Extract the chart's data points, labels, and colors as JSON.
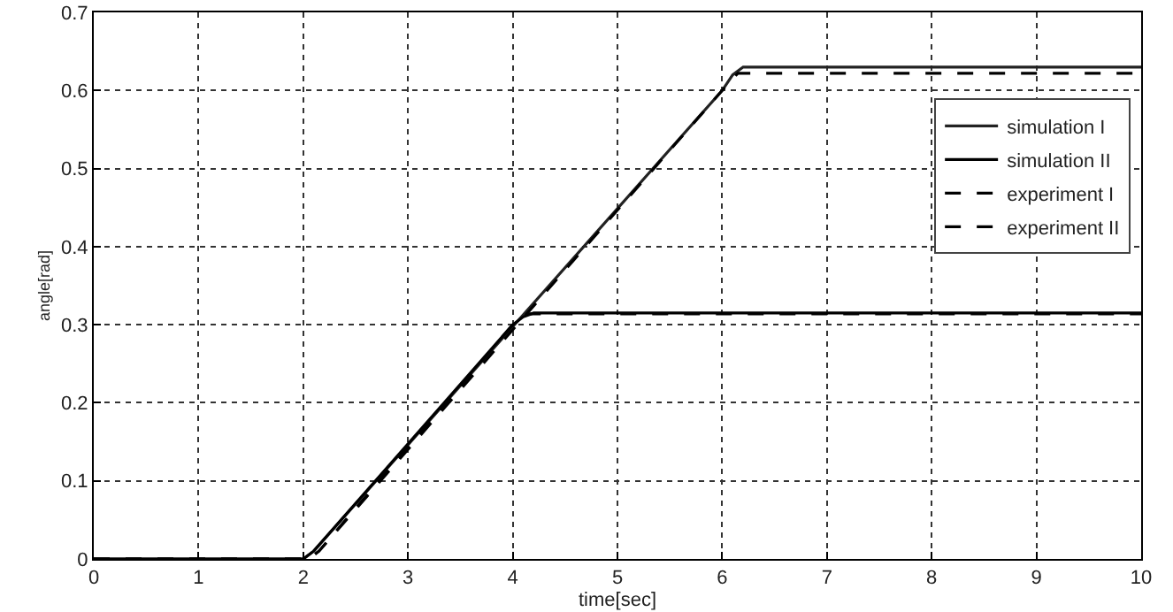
{
  "chart_data": {
    "type": "line",
    "xlabel": "time[sec]",
    "ylabel": "angle[rad]",
    "xlim": [
      0,
      10
    ],
    "ylim": [
      0,
      0.7
    ],
    "xticks": [
      0,
      1,
      2,
      3,
      4,
      5,
      6,
      7,
      8,
      9,
      10
    ],
    "yticks": [
      0,
      0.1,
      0.2,
      0.3,
      0.4,
      0.5,
      0.6,
      0.7
    ],
    "grid": true,
    "legend": "right",
    "marker": "none",
    "series": [
      {
        "name": "simulation I",
        "color": "#222222",
        "line_style": "solid",
        "x": [
          0,
          2,
          2.1,
          6,
          6.1,
          6.2,
          10
        ],
        "values": [
          0,
          0,
          0.01,
          0.6,
          0.62,
          0.63,
          0.63
        ]
      },
      {
        "name": "simulation II",
        "color": "#000000",
        "line_style": "solid",
        "x": [
          0,
          2,
          2.1,
          4,
          4.1,
          4.2,
          10
        ],
        "values": [
          0,
          0,
          0.01,
          0.3,
          0.31,
          0.315,
          0.315
        ]
      },
      {
        "name": "experiment I",
        "color": "#000000",
        "line_style": "dashed",
        "x": [
          0,
          2.05,
          2.15,
          6,
          6.1,
          6.15,
          10
        ],
        "values": [
          0,
          0,
          0.01,
          0.6,
          0.615,
          0.622,
          0.622
        ]
      },
      {
        "name": "experiment II",
        "color": "#000000",
        "line_style": "dashed",
        "x": [
          0,
          2.05,
          2.15,
          4,
          4.1,
          4.15,
          10
        ],
        "values": [
          0,
          0,
          0.01,
          0.3,
          0.31,
          0.314,
          0.314
        ]
      }
    ]
  }
}
